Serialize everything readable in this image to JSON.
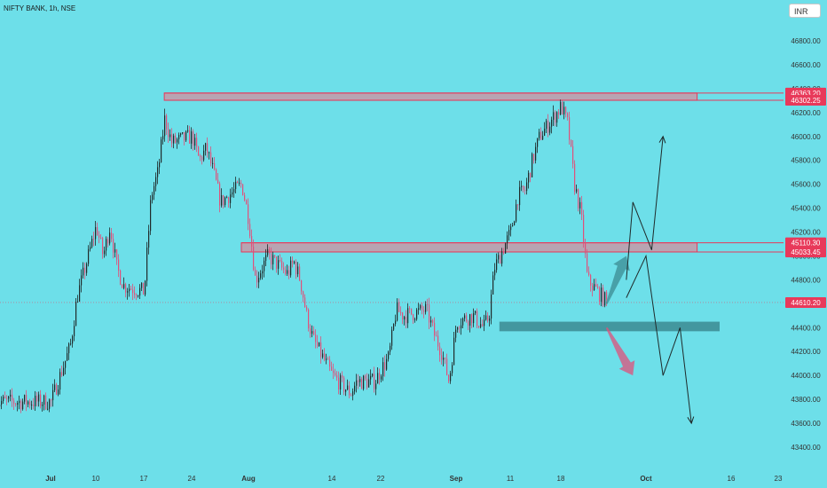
{
  "header": {
    "title": "NIFTY BANK, 1h, NSE",
    "currency_button": "INR"
  },
  "colors": {
    "background": "#6ddfe9",
    "bull": "#1f2a2a",
    "bear": "#e0507a",
    "zone_fill": "#c59aa8",
    "zone_border": "#e8395a",
    "support_zone": "#3c8b92",
    "price_tag": "#e8395a",
    "arrow": "#1f2a2a"
  },
  "chart_data": {
    "type": "candlestick",
    "title": "NIFTY BANK, 1h, NSE",
    "xlabel": "",
    "ylabel": "",
    "ylim": [
      43300,
      47150
    ],
    "y_ticks": [
      43400,
      43600,
      43800,
      44000,
      44200,
      44400,
      44600,
      44800,
      45000,
      45200,
      45400,
      45600,
      45800,
      46000,
      46200,
      46400,
      46600,
      46800
    ],
    "y_tick_labels": [
      "43400.00",
      "43600.00",
      "43800.00",
      "44000.00",
      "44200.00",
      "44400.00",
      "44600.00",
      "44800.00",
      "45000.00",
      "45200.00",
      "45400.00",
      "45600.00",
      "45800.00",
      "46000.00",
      "46200.00",
      "46400.00",
      "46600.00",
      "46800.00"
    ],
    "x_tick_labels": [
      {
        "label": "Jul",
        "date": "2023-07-03",
        "bold": true
      },
      {
        "label": "10",
        "date": "2023-07-10",
        "bold": false
      },
      {
        "label": "17",
        "date": "2023-07-17",
        "bold": false
      },
      {
        "label": "24",
        "date": "2023-07-24",
        "bold": false
      },
      {
        "label": "Aug",
        "date": "2023-08-01",
        "bold": true
      },
      {
        "label": "14",
        "date": "2023-08-14",
        "bold": false
      },
      {
        "label": "22",
        "date": "2023-08-22",
        "bold": false
      },
      {
        "label": "Sep",
        "date": "2023-09-01",
        "bold": true
      },
      {
        "label": "11",
        "date": "2023-09-11",
        "bold": false
      },
      {
        "label": "18",
        "date": "2023-09-18",
        "bold": false
      },
      {
        "label": "Oct",
        "date": "2023-10-01",
        "bold": true
      },
      {
        "label": "16",
        "date": "2023-10-16",
        "bold": false
      },
      {
        "label": "23",
        "date": "2023-10-23",
        "bold": false
      }
    ],
    "price_labels": [
      {
        "value": 46363.2,
        "text": "46363.20"
      },
      {
        "value": 46302.25,
        "text": "46302.25"
      },
      {
        "value": 45110.3,
        "text": "45110.30"
      },
      {
        "value": 45033.45,
        "text": "45033.45"
      },
      {
        "value": 44610.2,
        "text": "44610.20"
      }
    ],
    "last_price": 44610.2,
    "resistance_zone": {
      "start": "2023-07-20",
      "end": "2023-10-10",
      "top": 46363.2,
      "bottom": 46302.25
    },
    "mid_zone": {
      "start": "2023-07-31",
      "end": "2023-10-10",
      "top": 45110.3,
      "bottom": 45033.45
    },
    "support_zone": {
      "start": "2023-09-09",
      "end": "2023-10-14",
      "top": 44450,
      "bottom": 44370
    },
    "trend_path": [
      {
        "date": "2023-07-03",
        "price": 43780
      },
      {
        "date": "2023-07-06",
        "price": 44250
      },
      {
        "date": "2023-07-07",
        "price": 44650
      },
      {
        "date": "2023-07-10",
        "price": 45250
      },
      {
        "date": "2023-07-11",
        "price": 45000
      },
      {
        "date": "2023-07-12",
        "price": 45250
      },
      {
        "date": "2023-07-13",
        "price": 44900
      },
      {
        "date": "2023-07-14",
        "price": 44750
      },
      {
        "date": "2023-07-17",
        "price": 44700
      },
      {
        "date": "2023-07-18",
        "price": 45500
      },
      {
        "date": "2023-07-19",
        "price": 45700
      },
      {
        "date": "2023-07-20",
        "price": 46150
      },
      {
        "date": "2023-07-21",
        "price": 45950
      },
      {
        "date": "2023-07-24",
        "price": 46000
      },
      {
        "date": "2023-07-25",
        "price": 45800
      },
      {
        "date": "2023-07-26",
        "price": 45900
      },
      {
        "date": "2023-07-27",
        "price": 45700
      },
      {
        "date": "2023-07-28",
        "price": 45450
      },
      {
        "date": "2023-07-31",
        "price": 45600
      },
      {
        "date": "2023-08-01",
        "price": 45300
      },
      {
        "date": "2023-08-02",
        "price": 44800
      },
      {
        "date": "2023-08-03",
        "price": 44900
      },
      {
        "date": "2023-08-04",
        "price": 45000
      },
      {
        "date": "2023-08-07",
        "price": 44850
      },
      {
        "date": "2023-08-08",
        "price": 44950
      },
      {
        "date": "2023-08-09",
        "price": 44800
      },
      {
        "date": "2023-08-10",
        "price": 44500
      },
      {
        "date": "2023-08-11",
        "price": 44300
      },
      {
        "date": "2023-08-14",
        "price": 44000
      },
      {
        "date": "2023-08-16",
        "price": 43900
      },
      {
        "date": "2023-08-17",
        "price": 43850
      },
      {
        "date": "2023-08-18",
        "price": 43950
      },
      {
        "date": "2023-08-21",
        "price": 43950
      },
      {
        "date": "2023-08-22",
        "price": 44050
      },
      {
        "date": "2023-08-23",
        "price": 44150
      },
      {
        "date": "2023-08-24",
        "price": 44550
      },
      {
        "date": "2023-08-25",
        "price": 44500
      },
      {
        "date": "2023-08-28",
        "price": 44550
      },
      {
        "date": "2023-08-29",
        "price": 44350
      },
      {
        "date": "2023-08-30",
        "price": 44200
      },
      {
        "date": "2023-08-31",
        "price": 43950
      },
      {
        "date": "2023-09-01",
        "price": 44450
      },
      {
        "date": "2023-09-04",
        "price": 44500
      },
      {
        "date": "2023-09-05",
        "price": 44450
      },
      {
        "date": "2023-09-06",
        "price": 44400
      },
      {
        "date": "2023-09-07",
        "price": 44500
      },
      {
        "date": "2023-09-08",
        "price": 44900
      },
      {
        "date": "2023-09-11",
        "price": 45200
      },
      {
        "date": "2023-09-12",
        "price": 45500
      },
      {
        "date": "2023-09-13",
        "price": 45550
      },
      {
        "date": "2023-09-14",
        "price": 45800
      },
      {
        "date": "2023-09-15",
        "price": 46000
      },
      {
        "date": "2023-09-18",
        "price": 46250
      },
      {
        "date": "2023-09-19",
        "price": 46100
      },
      {
        "date": "2023-09-20",
        "price": 45600
      },
      {
        "date": "2023-09-21",
        "price": 45350
      },
      {
        "date": "2023-09-22",
        "price": 44800
      },
      {
        "date": "2023-09-25",
        "price": 44610
      }
    ],
    "projection_paths": [
      {
        "name": "bullish",
        "points": [
          {
            "date": "2023-09-28",
            "price": 44800
          },
          {
            "date": "2023-09-29",
            "price": 45450
          },
          {
            "date": "2023-10-02",
            "price": 45050
          },
          {
            "date": "2023-10-04",
            "price": 46000
          }
        ]
      },
      {
        "name": "bearish",
        "points": [
          {
            "date": "2023-09-28",
            "price": 44650
          },
          {
            "date": "2023-10-01",
            "price": 45000
          },
          {
            "date": "2023-10-04",
            "price": 44000
          },
          {
            "date": "2023-10-07",
            "price": 44400
          },
          {
            "date": "2023-10-09",
            "price": 43600
          }
        ]
      }
    ],
    "pointer_arrows": [
      {
        "name": "up",
        "from": {
          "date": "2023-09-25",
          "price": 44600
        },
        "to": {
          "date": "2023-09-28",
          "price": 45000
        }
      },
      {
        "name": "down",
        "from": {
          "date": "2023-09-25",
          "price": 44400
        },
        "to": {
          "date": "2023-09-29",
          "price": 44000
        }
      }
    ]
  }
}
